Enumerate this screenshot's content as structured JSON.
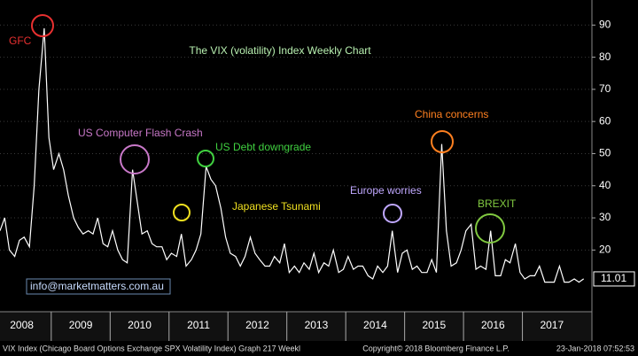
{
  "chart_data": {
    "type": "line",
    "title": "The VIX (volatility) Index Weekly Chart",
    "color": "#ffffff",
    "grid": true,
    "x": [
      2008.13,
      2008.21,
      2008.29,
      2008.38,
      2008.46,
      2008.54,
      2008.63,
      2008.71,
      2008.79,
      2008.88,
      2008.96,
      2009.04,
      2009.13,
      2009.21,
      2009.29,
      2009.38,
      2009.46,
      2009.54,
      2009.63,
      2009.71,
      2009.79,
      2009.88,
      2009.96,
      2010.04,
      2010.13,
      2010.21,
      2010.29,
      2010.38,
      2010.46,
      2010.54,
      2010.63,
      2010.71,
      2010.79,
      2010.88,
      2010.96,
      2011.04,
      2011.13,
      2011.21,
      2011.29,
      2011.38,
      2011.46,
      2011.54,
      2011.63,
      2011.71,
      2011.79,
      2011.88,
      2011.96,
      2012.04,
      2012.13,
      2012.21,
      2012.29,
      2012.38,
      2012.46,
      2012.54,
      2012.63,
      2012.71,
      2012.79,
      2012.88,
      2012.96,
      2013.04,
      2013.13,
      2013.21,
      2013.29,
      2013.38,
      2013.46,
      2013.54,
      2013.63,
      2013.71,
      2013.79,
      2013.88,
      2013.96,
      2014.04,
      2014.13,
      2014.21,
      2014.29,
      2014.38,
      2014.46,
      2014.54,
      2014.63,
      2014.71,
      2014.79,
      2014.88,
      2014.96,
      2015.04,
      2015.13,
      2015.21,
      2015.29,
      2015.38,
      2015.46,
      2015.54,
      2015.63,
      2015.71,
      2015.79,
      2015.88,
      2015.96,
      2016.04,
      2016.13,
      2016.21,
      2016.29,
      2016.38,
      2016.46,
      2016.54,
      2016.63,
      2016.71,
      2016.79,
      2016.88,
      2016.96,
      2017.04,
      2017.13,
      2017.21,
      2017.29,
      2017.38,
      2017.46,
      2017.54,
      2017.63,
      2017.71,
      2017.79,
      2017.88,
      2017.96,
      2018.04
    ],
    "values": [
      26,
      30,
      20,
      18,
      23,
      24,
      21,
      40,
      70,
      89,
      55,
      45,
      50,
      45,
      37,
      30,
      27,
      25,
      26,
      25,
      30,
      22,
      21,
      26,
      20,
      17,
      16,
      45,
      35,
      25,
      26,
      22,
      21,
      21,
      17,
      19,
      18,
      25,
      15,
      17,
      20,
      25,
      46,
      42,
      40,
      33,
      24,
      19,
      18,
      15,
      18,
      24,
      19,
      17,
      15,
      15,
      18,
      16,
      22,
      13,
      15,
      13,
      16,
      14,
      19,
      13,
      16,
      15,
      20,
      13,
      14,
      18,
      14,
      15,
      15,
      12,
      11,
      15,
      13,
      15,
      26,
      13,
      19,
      20,
      14,
      15,
      13,
      13,
      17,
      13,
      53,
      26,
      15,
      16,
      20,
      26,
      28,
      14,
      15,
      14,
      26,
      12,
      12,
      17,
      16,
      22,
      13,
      11,
      12,
      12,
      15,
      10,
      10,
      10,
      15,
      10,
      10,
      11,
      10,
      11.01
    ],
    "last_label": "11.01",
    "xlim": [
      2008.13,
      2018.18
    ],
    "ylim": [
      0.8,
      97.8
    ],
    "xticks": [
      2008,
      2009,
      2010,
      2011,
      2012,
      2013,
      2014,
      2015,
      2016,
      2017
    ],
    "yticks": [
      20,
      30,
      40,
      50,
      60,
      70,
      80,
      90
    ],
    "annotations": [
      {
        "text": "GFC",
        "color": "#e83030"
      },
      {
        "text": "US Computer Flash Crash",
        "color": "#c878c8"
      },
      {
        "text": "US Debt downgrade",
        "color": "#40d040"
      },
      {
        "text": "Japanese Tsunami",
        "color": "#f0e020"
      },
      {
        "text": "Europe worries",
        "color": "#c0a8ff"
      },
      {
        "text": "China concerns",
        "color": "#ff8020"
      },
      {
        "text": "BREXIT",
        "color": "#80c840"
      }
    ],
    "watermark": "info@marketmatters.com.au",
    "footer_left": "VIX Index (Chicago Board Options Exchange SPX Volatility Index) Graph 217  Weekl",
    "footer_mid": "Copyright© 2018 Bloomberg Finance L.P.",
    "footer_right": "23-Jan-2018 07:52:53"
  }
}
